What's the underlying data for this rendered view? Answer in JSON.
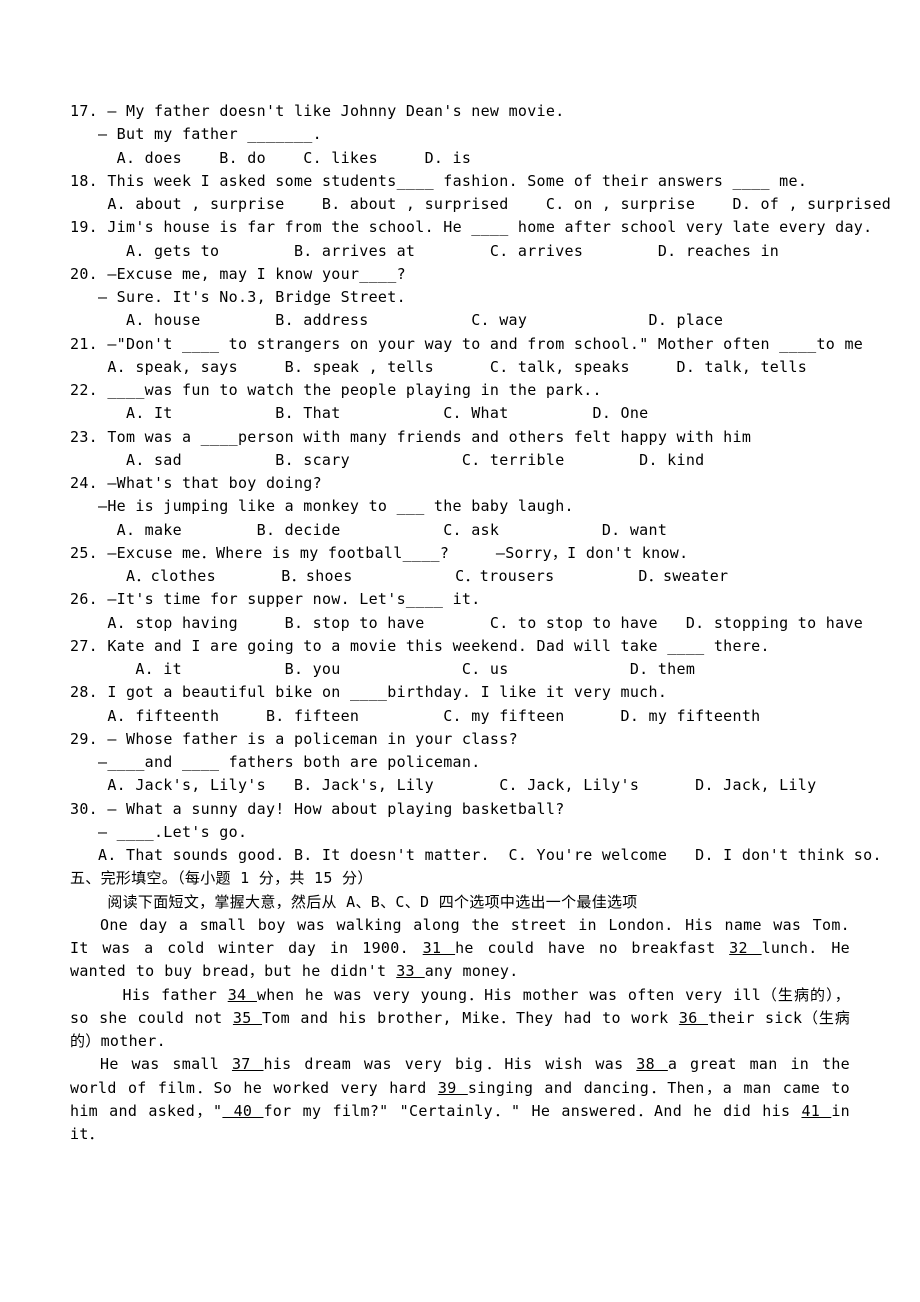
{
  "questions": [
    {
      "num": "17.",
      "stem": "— My father doesn't like Johnny Dean's new movie.",
      "cont": "   — But my father _______.",
      "opts": "     A. does    B. do    C. likes     D. is"
    },
    {
      "num": "18.",
      "stem": "This week I asked some students____ fashion. Some of their answers ____ me.",
      "opts": "    A. about , surprise    B. about , surprised    C. on , surprise    D. of , surprised"
    },
    {
      "num": "19.",
      "stem": "Jim's house is far from the school. He ____ home after school very late every day.",
      "opts": "      A. gets to        B. arrives at        C. arrives        D. reaches in"
    },
    {
      "num": "20.",
      "stem": "—Excuse me, may I know your____?",
      "cont": "   — Sure. It's No.3, Bridge Street.",
      "opts": "      A. house        B. address           C. way             D. place"
    },
    {
      "num": "21.",
      "stem": "—\"Don't ____ to strangers on your way to and from school.\" Mother often ____to me",
      "opts": "    A. speak, says     B. speak , tells      C. talk, speaks     D. talk, tells"
    },
    {
      "num": "22.",
      "stem": "____was fun to watch the people playing in the park..",
      "opts": "      A. It           B. That           C. What         D. One"
    },
    {
      "num": "23.",
      "stem": "Tom was a ____person with many friends and others felt happy with him",
      "opts": "      A. sad          B. scary            C. terrible        D. kind"
    },
    {
      "num": "24.",
      "stem": "—What's that boy doing?",
      "cont": "   —He is jumping like a monkey to ___ the baby laugh.",
      "opts": "     A. make        B. decide           C. ask           D. want"
    },
    {
      "num": "25.",
      "stem": "—Excuse me．Where is my football____?     —Sorry，I don't know.",
      "opts": "      A．clothes       B．shoes           C．trousers         D．sweater"
    },
    {
      "num": "26.",
      "stem": "—It's time for supper now. Let's____ it.",
      "opts": "    A. stop having     B. stop to have       C. to stop to have   D. stopping to have"
    },
    {
      "num": "27.",
      "stem": "Kate and I are going to a movie this weekend. Dad will take ____ there.",
      "opts": "       A. it           B. you             C. us             D. them"
    },
    {
      "num": "28.",
      "stem": "I got a beautiful bike on ____birthday. I like it very much.",
      "opts": "    A. fifteenth     B. fifteen         C. my fifteen      D. my fifteenth"
    },
    {
      "num": "29.",
      "stem": "— Whose father is a policeman in your class?",
      "cont": "   —____and ____ fathers both are policeman.",
      "opts": "    A. Jack's, Lily's   B. Jack's, Lily       C. Jack, Lily's      D. Jack, Lily"
    },
    {
      "num": "30.",
      "stem": "— What a sunny day! How about playing basketball?",
      "cont": "   — ____.Let's go.",
      "opts": "   A. That sounds good. B. It doesn't matter.  C. You're welcome   D. I don't think so."
    }
  ],
  "section5": {
    "title": "五、完形填空。（每小题 1 分，共 15 分）",
    "instruction": "    阅读下面短文，掌握大意，然后从 A、B、C、D 四个选项中选出一个最佳选项"
  },
  "passage": {
    "p1_pre": "One day a small boy was walking along the street in London. His name was Tom. It was a cold winter day in 1900. ",
    "b31": "  31  ",
    "p1_mid1": " he could have no breakfast ",
    "b32": "  32  ",
    "p1_mid2": "lunch. He wanted to buy bread，but he didn't ",
    "b33": "  33  ",
    "p1_end": " any money.",
    "p2_pre": "His father ",
    "b34": "  34  ",
    "p2_mid1": " when he was very young．His mother was often very ill（生病的），so she could not ",
    "b35": "  35  ",
    "p2_mid2": " Tom and his brother, Mike．They had to work ",
    "b36": "  36  ",
    "p2_end": " their sick（生病的）mother.",
    "p3_pre": "He was small ",
    "b37": "  37  ",
    "p3_mid1": "his dream was very big．His wish was ",
    "b38": "  38  ",
    "p3_mid2": " a great man in the world of film．So he worked very hard ",
    "b39": "  39  ",
    "p3_mid3": " singing and dancing．Then，a man came to him and asked，\"",
    "b40": "  40  ",
    "p3_mid4": " for my film?\" \"Certainly．\" He answered．And he did his ",
    "b41": "  41  ",
    "p3_end": " in it．"
  }
}
